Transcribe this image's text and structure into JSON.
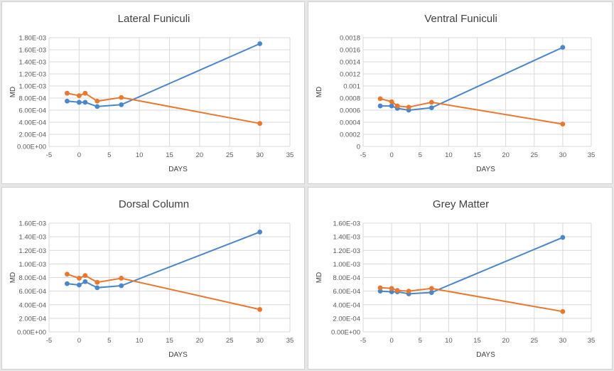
{
  "colors": {
    "blue": "#4A86C8",
    "orange": "#E8782F",
    "grid": "#d9d9d9",
    "axis": "#bfbfbf"
  },
  "chart_data": [
    {
      "type": "line",
      "title": "Lateral Funiculi",
      "xlabel": "DAYS",
      "ylabel": "MD",
      "xlim": [
        -5,
        35
      ],
      "ylim": [
        0,
        0.0018
      ],
      "x_ticks": [
        -5,
        0,
        5,
        10,
        15,
        20,
        25,
        30,
        35
      ],
      "x_tick_labels": [
        "-5",
        "0",
        "5",
        "10",
        "15",
        "20",
        "25",
        "30",
        "35"
      ],
      "y_ticks": [
        0,
        0.0002,
        0.0004,
        0.0006,
        0.0008,
        0.001,
        0.0012,
        0.0014,
        0.0016,
        0.0018
      ],
      "y_tick_labels": [
        "0.00E+00",
        "2.00E-04",
        "4.00E-04",
        "6.00E-04",
        "8.00E-04",
        "1.00E-03",
        "1.20E-03",
        "1.40E-03",
        "1.60E-03",
        "1.80E-03"
      ],
      "grid": true,
      "series": [
        {
          "name": "blue series",
          "color": "blue",
          "x": [
            -2,
            0,
            1,
            3,
            7,
            30
          ],
          "y": [
            0.00075,
            0.00073,
            0.00073,
            0.00066,
            0.00069,
            0.0017
          ]
        },
        {
          "name": "orange series",
          "color": "orange",
          "x": [
            -2,
            0,
            1,
            3,
            7,
            30
          ],
          "y": [
            0.00088,
            0.00084,
            0.00088,
            0.00075,
            0.00081,
            0.00038
          ]
        }
      ]
    },
    {
      "type": "line",
      "title": "Ventral Funiculi",
      "xlabel": "DAYS",
      "ylabel": "MD",
      "xlim": [
        -5,
        35
      ],
      "ylim": [
        0,
        0.0018
      ],
      "x_ticks": [
        -5,
        0,
        5,
        10,
        15,
        20,
        25,
        30,
        35
      ],
      "x_tick_labels": [
        "-5",
        "0",
        "5",
        "10",
        "15",
        "20",
        "25",
        "30",
        "35"
      ],
      "y_ticks": [
        0,
        0.0002,
        0.0004,
        0.0006,
        0.0008,
        0.001,
        0.0012,
        0.0014,
        0.0016,
        0.0018
      ],
      "y_tick_labels": [
        "0",
        "0.0002",
        "0.0004",
        "0.0006",
        "0.0008",
        "0.001",
        "0.0012",
        "0.0014",
        "0.0016",
        "0.0018"
      ],
      "grid": true,
      "series": [
        {
          "name": "blue series",
          "color": "blue",
          "x": [
            -2,
            0,
            1,
            3,
            7,
            30
          ],
          "y": [
            0.00067,
            0.00067,
            0.00063,
            0.0006,
            0.00064,
            0.00164
          ]
        },
        {
          "name": "orange series",
          "color": "orange",
          "x": [
            -2,
            0,
            1,
            3,
            7,
            30
          ],
          "y": [
            0.00079,
            0.00074,
            0.00067,
            0.00065,
            0.00073,
            0.00037
          ]
        }
      ]
    },
    {
      "type": "line",
      "title": "Dorsal Column",
      "xlabel": "DAYS",
      "ylabel": "MD",
      "xlim": [
        -5,
        35
      ],
      "ylim": [
        0,
        0.0016
      ],
      "x_ticks": [
        -5,
        0,
        5,
        10,
        15,
        20,
        25,
        30,
        35
      ],
      "x_tick_labels": [
        "-5",
        "0",
        "5",
        "10",
        "15",
        "20",
        "25",
        "30",
        "35"
      ],
      "y_ticks": [
        0,
        0.0002,
        0.0004,
        0.0006,
        0.0008,
        0.001,
        0.0012,
        0.0014,
        0.0016
      ],
      "y_tick_labels": [
        "0.00E+00",
        "2.00E-04",
        "4.00E-04",
        "6.00E-04",
        "8.00E-04",
        "1.00E-03",
        "1.20E-03",
        "1.40E-03",
        "1.60E-03"
      ],
      "grid": true,
      "series": [
        {
          "name": "blue series",
          "color": "blue",
          "x": [
            -2,
            0,
            1,
            3,
            7,
            30
          ],
          "y": [
            0.00071,
            0.00069,
            0.00074,
            0.00065,
            0.00068,
            0.00147
          ]
        },
        {
          "name": "orange series",
          "color": "orange",
          "x": [
            -2,
            0,
            1,
            3,
            7,
            30
          ],
          "y": [
            0.00085,
            0.00079,
            0.00083,
            0.00073,
            0.00079,
            0.00033
          ]
        }
      ]
    },
    {
      "type": "line",
      "title": "Grey Matter",
      "xlabel": "DAYS",
      "ylabel": "MD",
      "xlim": [
        -5,
        35
      ],
      "ylim": [
        0,
        0.0016
      ],
      "x_ticks": [
        -5,
        0,
        5,
        10,
        15,
        20,
        25,
        30,
        35
      ],
      "x_tick_labels": [
        "-5",
        "0",
        "5",
        "10",
        "15",
        "20",
        "25",
        "30",
        "35"
      ],
      "y_ticks": [
        0,
        0.0002,
        0.0004,
        0.0006,
        0.0008,
        0.001,
        0.0012,
        0.0014,
        0.0016
      ],
      "y_tick_labels": [
        "0.00E+00",
        "2.00E-04",
        "4.00E-04",
        "6.00E-04",
        "8.00E-04",
        "1.00E-03",
        "1.20E-03",
        "1.40E-03",
        "1.60E-03"
      ],
      "grid": true,
      "series": [
        {
          "name": "blue series",
          "color": "blue",
          "x": [
            -2,
            0,
            1,
            3,
            7,
            30
          ],
          "y": [
            0.0006,
            0.00059,
            0.00059,
            0.00056,
            0.00058,
            0.00139
          ]
        },
        {
          "name": "orange series",
          "color": "orange",
          "x": [
            -2,
            0,
            1,
            3,
            7,
            30
          ],
          "y": [
            0.00065,
            0.00064,
            0.00061,
            0.0006,
            0.00064,
            0.0003
          ]
        }
      ]
    }
  ]
}
